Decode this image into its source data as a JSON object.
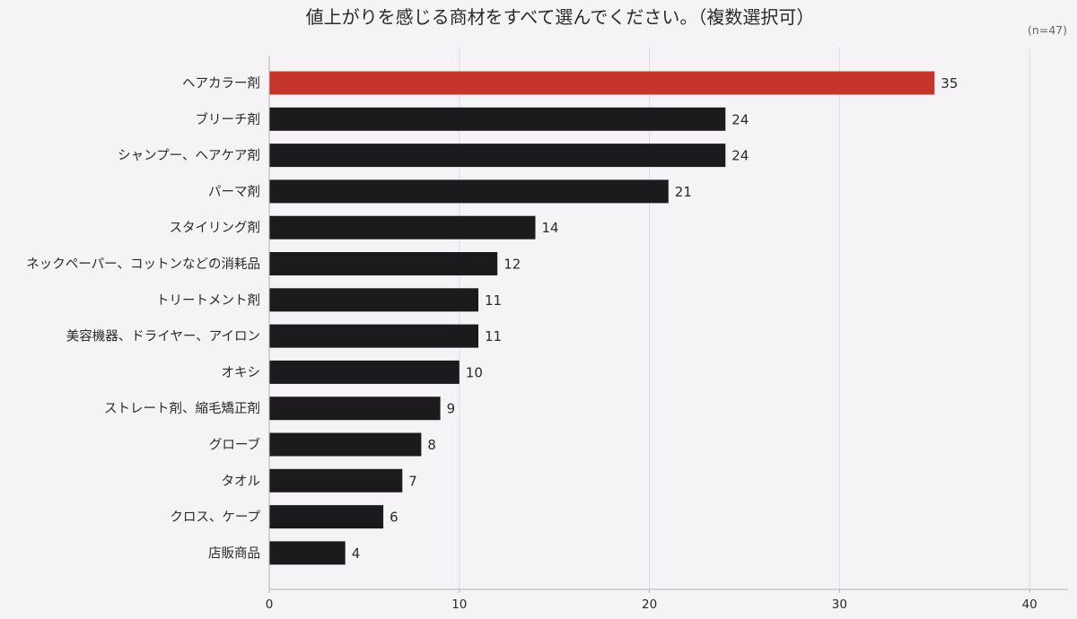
{
  "chart_data": {
    "type": "bar",
    "orientation": "horizontal",
    "title": "値上がりを感じる商材をすべて選んでください。（複数選択可）",
    "note": "(n=47)",
    "categories": [
      "ヘアカラー剤",
      "ブリーチ剤",
      "シャンプー、ヘアケア剤",
      "パーマ剤",
      "スタイリング剤",
      "ネックペーパー、コットンなどの消耗品",
      "トリートメント剤",
      "美容機器、ドライヤー、アイロン",
      "オキシ",
      "ストレート剤、縮毛矯正剤",
      "グローブ",
      "タオル",
      "クロス、ケープ",
      "店販商品"
    ],
    "values": [
      35,
      24,
      24,
      21,
      14,
      12,
      11,
      11,
      10,
      9,
      8,
      7,
      6,
      4
    ],
    "xlim": [
      0,
      42
    ],
    "xticks": [
      0,
      10,
      20,
      30,
      40
    ],
    "xlabel": "",
    "ylabel": "",
    "grid": "vertical",
    "data_labels": true,
    "colors": {
      "highlight": "#c6352c",
      "bar": "#1d1a1e",
      "grid": "#dedbe0",
      "axis": "#b5b2b6",
      "text": "#2a2a2a",
      "note": "#666666",
      "background": "#f5f3f6"
    },
    "highlight_index": 0
  }
}
